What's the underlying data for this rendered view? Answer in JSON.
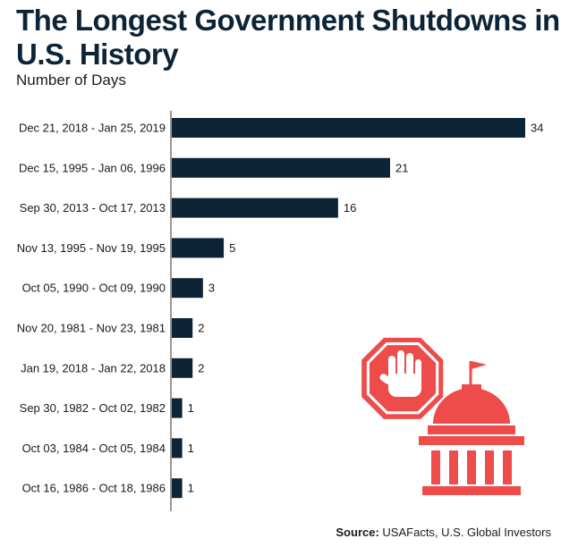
{
  "header": {
    "title": "The Longest Government Shutdowns in U.S. History",
    "subtitle": "Number of Days"
  },
  "footer": {
    "source_label": "Source:",
    "source_text": "USAFacts, U.S. Global Investors"
  },
  "colors": {
    "bar": "#0d2436",
    "illustration": "#ee4b4b"
  },
  "illustration_icons": [
    "stop-hand-sign-icon",
    "government-building-icon"
  ],
  "chart_data": {
    "type": "bar",
    "orientation": "horizontal",
    "title": "The Longest Government Shutdowns in U.S. History",
    "subtitle": "Number of Days",
    "xlabel": "",
    "ylabel": "",
    "categories": [
      "Dec 21, 2018 - Jan 25, 2019",
      "Dec 15, 1995  - Jan 06, 1996",
      "Sep 30, 2013  - Oct 17, 2013",
      "Nov 13, 1995 - Nov 19, 1995",
      "Oct 05, 1990 - Oct 09, 1990",
      "Nov 20, 1981 - Nov 23, 1981",
      "Jan 19, 2018  - Jan 22, 2018",
      "Sep 30, 1982  - Oct 02, 1982",
      "Oct 03, 1984  - Oct 05, 1984",
      "Oct 16, 1986  - Oct 18, 1986"
    ],
    "values": [
      34,
      21,
      16,
      5,
      3,
      2,
      2,
      1,
      1,
      1
    ],
    "xlim": [
      0,
      34
    ],
    "grid": false,
    "legend": "none",
    "data_labels": true
  }
}
